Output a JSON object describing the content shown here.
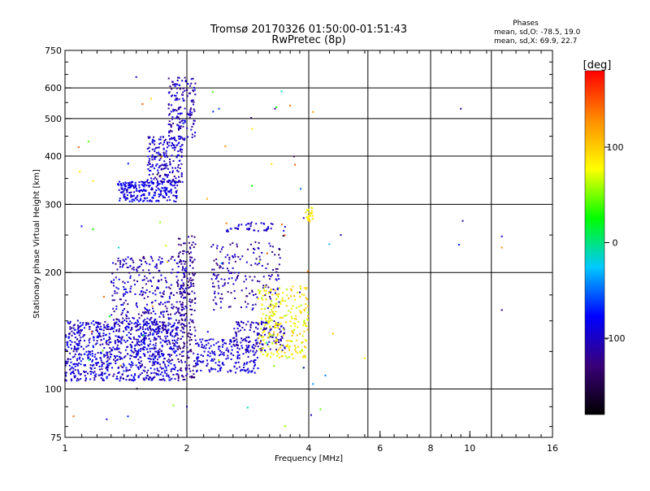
{
  "chart_data": {
    "type": "scatter",
    "title": "Tromsø 20170326 01:50:00-01:51:43",
    "subtitle": "RwPretec (8p)",
    "xlabel": "Frequency [MHz]",
    "ylabel": "Stationary phase Virtual Height [km]",
    "x_scale": "log",
    "y_scale": "log",
    "xlim": [
      1,
      16
    ],
    "ylim": [
      75,
      750
    ],
    "x_ticks": [
      1,
      2,
      4,
      6,
      8,
      10,
      16
    ],
    "x_tick_labels": [
      "1",
      "2",
      "4",
      "6",
      "8",
      "10",
      "16"
    ],
    "x_grid": [
      2,
      4,
      5.6,
      8,
      11.3
    ],
    "y_ticks": [
      75,
      100,
      200,
      300,
      400,
      500,
      600,
      750
    ],
    "y_tick_labels": [
      "75",
      "100",
      "200",
      "300",
      "400",
      "500",
      "600",
      "750"
    ],
    "y_grid": [
      100,
      200,
      300,
      400,
      500,
      600
    ],
    "grid": true,
    "stats": {
      "heading": "Phases",
      "line_o": "mean, sd,O: -78.5, 19.0",
      "line_x": "mean, sd,X:  69.9, 22.7"
    },
    "colorbar": {
      "label": "[deg]",
      "range": [
        -180,
        180
      ],
      "ticks": [
        100,
        0,
        -100
      ],
      "tick_labels": [
        "100",
        "0",
        "-100"
      ],
      "colormap": [
        "#000000",
        "#3a007a",
        "#0000ff",
        "#00c8ff",
        "#00ff00",
        "#ffff00",
        "#ff8c00",
        "#ff0000"
      ]
    },
    "clusters": [
      {
        "f": [
          1.0,
          1.9
        ],
        "h": [
          105,
          150
        ],
        "n": 900,
        "phase": [
          -120,
          -70
        ]
      },
      {
        "f": [
          1.3,
          2.0
        ],
        "h": [
          140,
          220
        ],
        "n": 350,
        "phase": [
          -130,
          -80
        ]
      },
      {
        "f": [
          1.9,
          2.1
        ],
        "h": [
          105,
          250
        ],
        "n": 220,
        "phase": [
          -140,
          -100
        ]
      },
      {
        "f": [
          2.1,
          3.0
        ],
        "h": [
          110,
          135
        ],
        "n": 200,
        "phase": [
          -110,
          -80
        ]
      },
      {
        "f": [
          2.3,
          3.4
        ],
        "h": [
          160,
          240
        ],
        "n": 180,
        "phase": [
          -130,
          -90
        ]
      },
      {
        "f": [
          2.6,
          3.5
        ],
        "h": [
          125,
          150
        ],
        "n": 150,
        "phase": [
          -120,
          -90
        ]
      },
      {
        "f": [
          3.0,
          4.0
        ],
        "h": [
          120,
          185
        ],
        "n": 260,
        "phase": [
          60,
          110
        ]
      },
      {
        "f": [
          2.5,
          3.5
        ],
        "h": [
          255,
          270
        ],
        "n": 45,
        "phase": [
          -110,
          -80
        ]
      },
      {
        "f": [
          3.9,
          4.1
        ],
        "h": [
          270,
          295
        ],
        "n": 25,
        "phase": [
          70,
          100
        ]
      },
      {
        "f": [
          1.35,
          1.9
        ],
        "h": [
          305,
          345
        ],
        "n": 240,
        "phase": [
          -110,
          -70
        ]
      },
      {
        "f": [
          1.6,
          1.95
        ],
        "h": [
          340,
          450
        ],
        "n": 200,
        "phase": [
          -120,
          -80
        ]
      },
      {
        "f": [
          1.8,
          2.1
        ],
        "h": [
          440,
          640
        ],
        "n": 160,
        "phase": [
          -130,
          -80
        ]
      },
      {
        "f": [
          1.05,
          4.6
        ],
        "h": [
          78,
          600
        ],
        "n": 70,
        "phase": [
          -170,
          160
        ]
      }
    ],
    "outliers": [
      {
        "f": 9.5,
        "h": 530,
        "phase": -120
      },
      {
        "f": 9.6,
        "h": 272,
        "phase": -110
      },
      {
        "f": 9.4,
        "h": 236,
        "phase": -70
      },
      {
        "f": 12.0,
        "h": 248,
        "phase": -100
      },
      {
        "f": 12.0,
        "h": 232,
        "phase": 130
      },
      {
        "f": 12.0,
        "h": 160,
        "phase": -120
      },
      {
        "f": 4.8,
        "h": 250,
        "phase": -110
      },
      {
        "f": 4.1,
        "h": 103,
        "phase": -40
      },
      {
        "f": 5.5,
        "h": 120,
        "phase": 80
      },
      {
        "f": 3.6,
        "h": 540,
        "phase": 140
      },
      {
        "f": 4.1,
        "h": 520,
        "phase": 120
      },
      {
        "f": 3.7,
        "h": 380,
        "phase": 150
      },
      {
        "f": 3.3,
        "h": 530,
        "phase": -120
      },
      {
        "f": 2.9,
        "h": 470,
        "phase": 90
      },
      {
        "f": 1.05,
        "h": 85,
        "phase": 140
      },
      {
        "f": 1.5,
        "h": 640,
        "phase": -100
      },
      {
        "f": 2.0,
        "h": 90,
        "phase": -110
      },
      {
        "f": 2.4,
        "h": 530,
        "phase": -60
      }
    ]
  }
}
